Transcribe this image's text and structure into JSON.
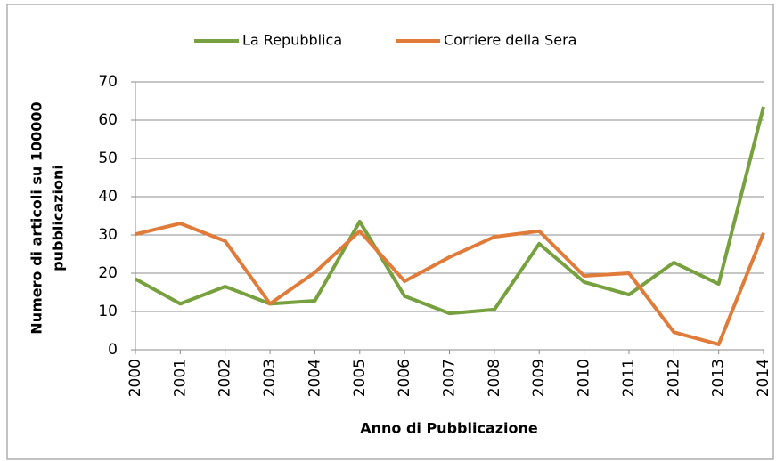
{
  "chart_data": {
    "type": "line",
    "xlabel": "Anno di Pubblicazione",
    "ylabel": [
      "Numero di articoli su 100000",
      "pubblicazioni"
    ],
    "categories": [
      "2000",
      "2001",
      "2002",
      "2003",
      "2004",
      "2005",
      "2006",
      "2007",
      "2008",
      "2009",
      "2010",
      "2011",
      "2012",
      "2013",
      "2014"
    ],
    "series": [
      {
        "name": "La Repubblica",
        "color": "#77a03f",
        "values": [
          18.5,
          12,
          16.5,
          12,
          12.8,
          33.5,
          14,
          9.5,
          10.5,
          27.7,
          17.7,
          14.4,
          22.8,
          17.2,
          63.5
        ]
      },
      {
        "name": "Corriere della Sera",
        "color": "#e07b39",
        "values": [
          30.2,
          33,
          28.4,
          12,
          20.2,
          31,
          17.9,
          24.2,
          29.5,
          31,
          19.3,
          20,
          4.6,
          1.4,
          30.5
        ]
      }
    ],
    "ylim": [
      0,
      70
    ],
    "yticks": [
      0,
      10,
      20,
      30,
      40,
      50,
      60,
      70
    ],
    "grid": true,
    "legend": "top"
  }
}
